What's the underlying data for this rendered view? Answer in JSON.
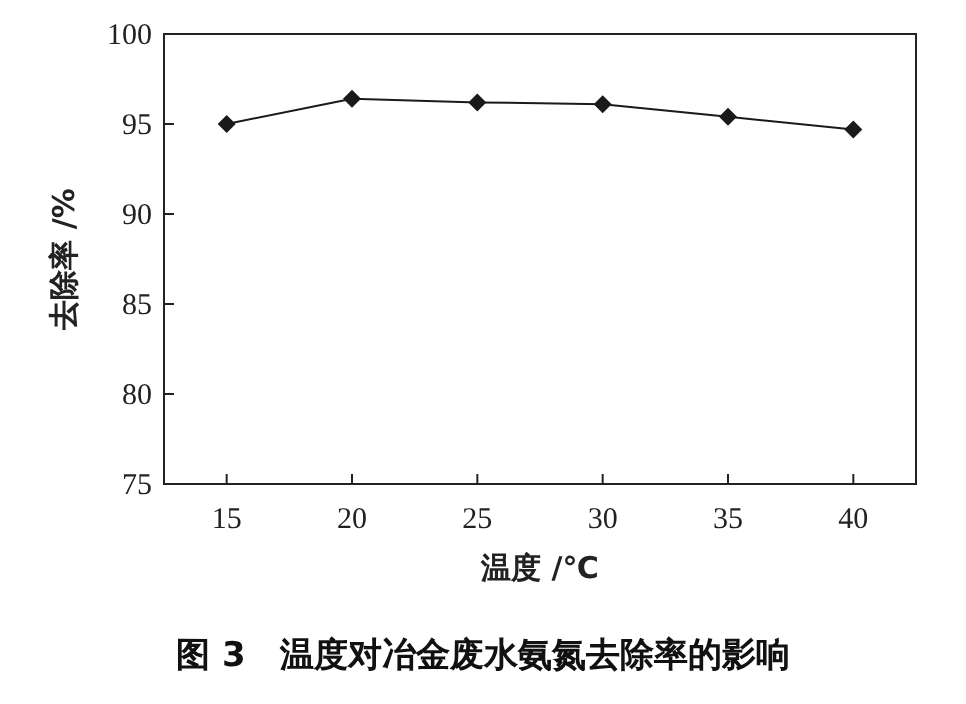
{
  "chart_data": {
    "type": "line",
    "title": "图 3　温度对冶金废水氨氮去除率的影响",
    "xlabel": "温度 /℃",
    "ylabel": "去除率 /%",
    "x": [
      15,
      20,
      25,
      30,
      35,
      40
    ],
    "series": [
      {
        "color": "#1a1a1a",
        "values": [
          95.0,
          96.4,
          96.2,
          96.1,
          95.4,
          94.7
        ]
      }
    ],
    "xlim": [
      12.5,
      42.5
    ],
    "ylim": [
      75,
      100
    ],
    "xticks": [
      15,
      20,
      25,
      30,
      35,
      40
    ],
    "yticks": [
      75,
      80,
      85,
      90,
      95,
      100
    ],
    "marker": "diamond",
    "line_style": "solid"
  }
}
